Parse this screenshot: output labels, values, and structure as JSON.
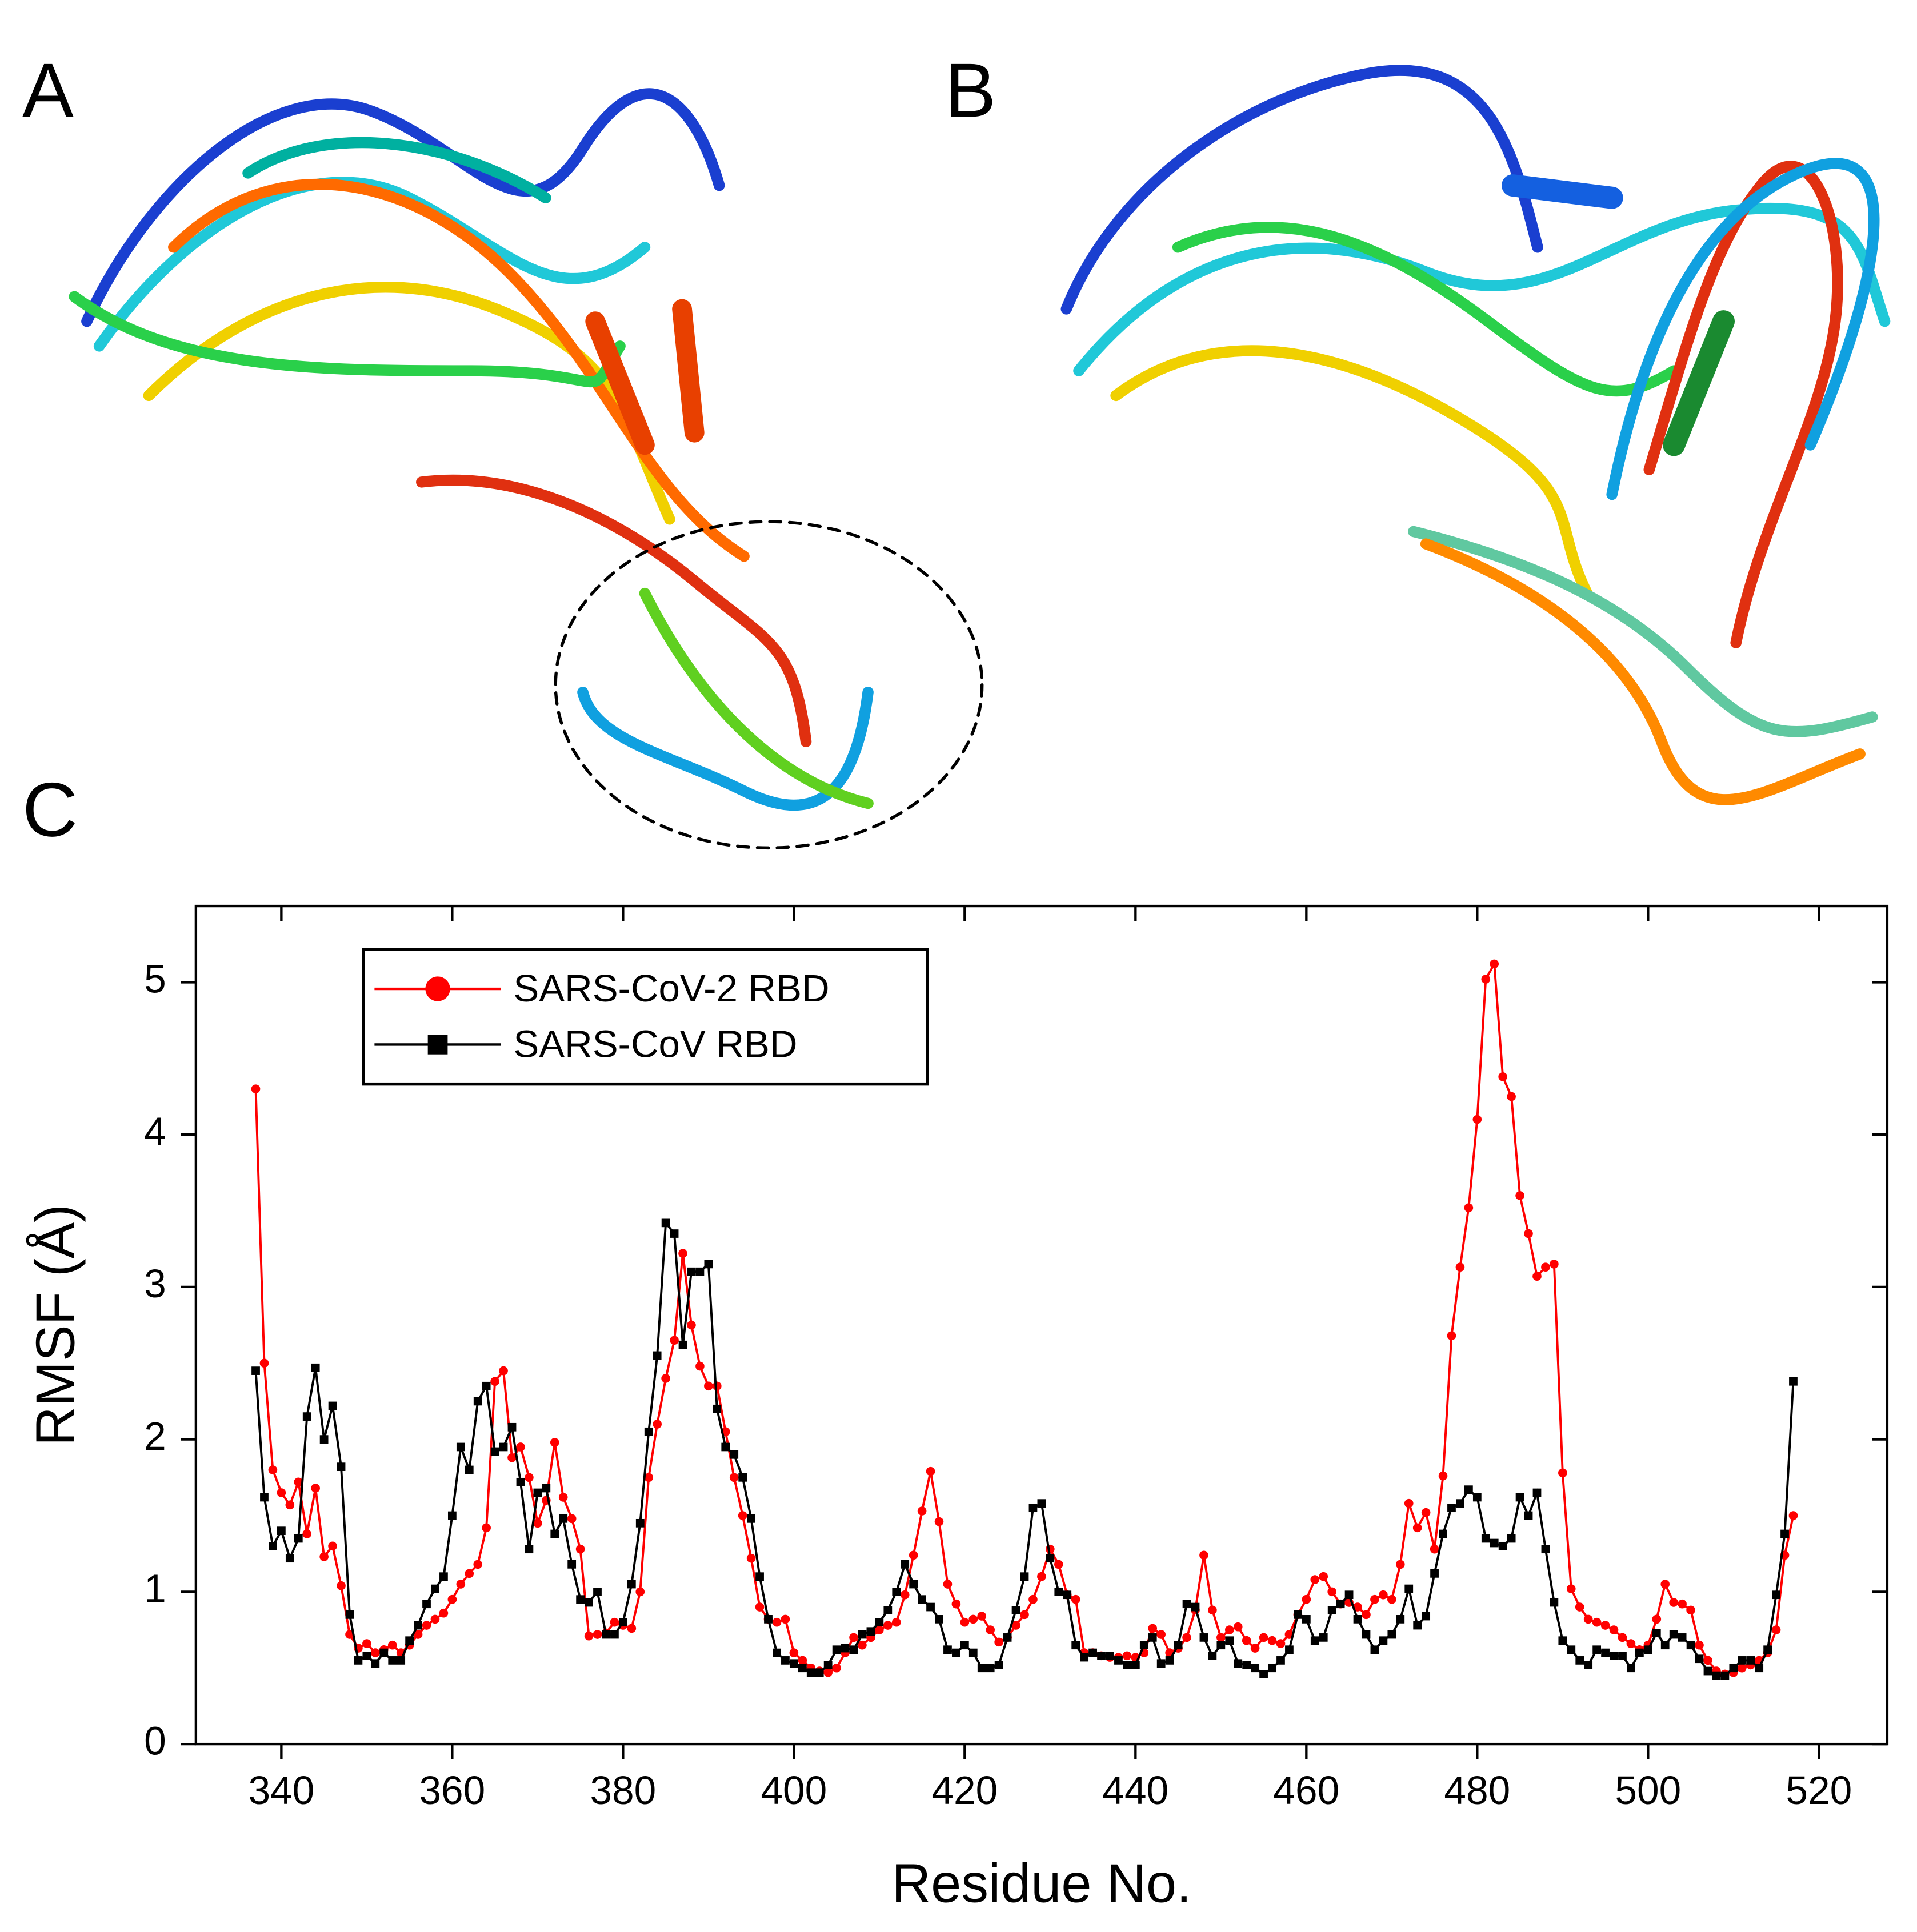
{
  "panels": [
    "A",
    "B",
    "C"
  ],
  "chart_data": {
    "type": "line",
    "xlabel": "Residue No.",
    "ylabel": "RMSF (Å)",
    "xlim": [
      330,
      528
    ],
    "xticks": [
      340,
      360,
      380,
      400,
      420,
      440,
      460,
      480,
      500,
      520
    ],
    "ylim": [
      0,
      5.5
    ],
    "yticks": [
      0,
      1,
      2,
      3,
      4,
      5
    ],
    "legend": "upper left",
    "x": [
      337,
      338,
      339,
      340,
      341,
      342,
      343,
      344,
      345,
      346,
      347,
      348,
      349,
      350,
      351,
      352,
      353,
      354,
      355,
      356,
      357,
      358,
      359,
      360,
      361,
      362,
      363,
      364,
      365,
      366,
      367,
      368,
      369,
      370,
      371,
      372,
      373,
      374,
      375,
      376,
      377,
      378,
      379,
      380,
      381,
      382,
      383,
      384,
      385,
      386,
      387,
      388,
      389,
      390,
      391,
      392,
      393,
      394,
      395,
      396,
      397,
      398,
      399,
      400,
      401,
      402,
      403,
      404,
      405,
      406,
      407,
      408,
      409,
      410,
      411,
      412,
      413,
      414,
      415,
      416,
      417,
      418,
      419,
      420,
      421,
      422,
      423,
      424,
      425,
      426,
      427,
      428,
      429,
      430,
      431,
      432,
      433,
      434,
      435,
      436,
      437,
      438,
      439,
      440,
      441,
      442,
      443,
      444,
      445,
      446,
      447,
      448,
      449,
      450,
      451,
      452,
      453,
      454,
      455,
      456,
      457,
      458,
      459,
      460,
      461,
      462,
      463,
      464,
      465,
      466,
      467,
      468,
      469,
      470,
      471,
      472,
      473,
      474,
      475,
      476,
      477,
      478,
      479,
      480,
      481,
      482,
      483,
      484,
      485,
      486,
      487,
      488,
      489,
      490,
      491,
      492,
      493,
      494,
      495,
      496,
      497,
      498,
      499,
      500,
      501,
      502,
      503,
      504,
      505,
      506,
      507,
      508,
      509,
      510,
      511,
      512,
      513,
      514,
      515,
      516,
      517
    ],
    "series": [
      {
        "name": "SARS-CoV-2 RBD",
        "color": "#ff0000",
        "marker": "circle",
        "values": [
          4.3,
          2.5,
          1.8,
          1.65,
          1.57,
          1.72,
          1.38,
          1.68,
          1.23,
          1.3,
          1.04,
          0.72,
          0.63,
          0.66,
          0.6,
          0.62,
          0.65,
          0.6,
          0.65,
          0.72,
          0.78,
          0.82,
          0.86,
          0.95,
          1.05,
          1.12,
          1.18,
          1.42,
          2.38,
          2.45,
          1.88,
          1.95,
          1.75,
          1.45,
          1.6,
          1.98,
          1.62,
          1.48,
          1.28,
          0.71,
          0.72,
          0.73,
          0.8,
          0.78,
          0.76,
          1.0,
          1.75,
          2.1,
          2.4,
          2.65,
          3.22,
          2.75,
          2.48,
          2.35,
          2.35,
          2.05,
          1.75,
          1.5,
          1.22,
          0.9,
          0.82,
          0.8,
          0.82,
          0.6,
          0.55,
          0.5,
          0.48,
          0.47,
          0.5,
          0.6,
          0.7,
          0.65,
          0.7,
          0.75,
          0.78,
          0.8,
          0.98,
          1.24,
          1.53,
          1.79,
          1.46,
          1.05,
          0.92,
          0.8,
          0.82,
          0.84,
          0.75,
          0.67,
          0.7,
          0.78,
          0.85,
          0.95,
          1.1,
          1.28,
          1.18,
          0.98,
          0.95,
          0.6,
          0.6,
          0.58,
          0.57,
          0.57,
          0.58,
          0.57,
          0.6,
          0.76,
          0.72,
          0.6,
          0.63,
          0.7,
          0.88,
          1.24,
          0.88,
          0.7,
          0.75,
          0.77,
          0.68,
          0.63,
          0.7,
          0.68,
          0.66,
          0.72,
          0.85,
          0.95,
          1.08,
          1.1,
          1.0,
          0.92,
          0.93,
          0.9,
          0.85,
          0.95,
          0.98,
          0.95,
          1.18,
          1.58,
          1.42,
          1.52,
          1.28,
          1.76,
          2.68,
          3.13,
          3.52,
          4.1,
          5.02,
          5.12,
          4.38,
          4.25,
          3.6,
          3.35,
          3.07,
          3.13,
          3.15,
          1.78,
          1.02,
          0.9,
          0.82,
          0.8,
          0.78,
          0.75,
          0.7,
          0.66,
          0.62,
          0.65,
          0.82,
          1.05,
          0.93,
          0.92,
          0.88,
          0.65,
          0.55,
          0.48,
          0.46,
          0.47,
          0.5,
          0.52,
          0.55,
          0.6,
          0.75,
          1.24,
          1.5
        ]
      },
      {
        "name": "SARS-CoV RBD",
        "color": "#000000",
        "marker": "square",
        "values": [
          2.45,
          1.62,
          1.3,
          1.4,
          1.22,
          1.35,
          2.15,
          2.47,
          2.0,
          2.22,
          1.82,
          0.85,
          0.55,
          0.58,
          0.53,
          0.6,
          0.55,
          0.55,
          0.68,
          0.78,
          0.92,
          1.02,
          1.1,
          1.5,
          1.95,
          1.8,
          2.25,
          2.35,
          1.92,
          1.95,
          2.08,
          1.72,
          1.28,
          1.65,
          1.68,
          1.38,
          1.48,
          1.18,
          0.95,
          0.93,
          1.0,
          0.72,
          0.72,
          0.8,
          1.05,
          1.45,
          2.05,
          2.55,
          3.42,
          3.35,
          2.62,
          3.1,
          3.1,
          3.15,
          2.2,
          1.95,
          1.9,
          1.75,
          1.48,
          1.1,
          0.82,
          0.6,
          0.55,
          0.53,
          0.5,
          0.47,
          0.47,
          0.52,
          0.62,
          0.63,
          0.62,
          0.72,
          0.74,
          0.8,
          0.88,
          1.0,
          1.18,
          1.05,
          0.95,
          0.9,
          0.82,
          0.62,
          0.6,
          0.65,
          0.6,
          0.5,
          0.5,
          0.52,
          0.7,
          0.88,
          1.1,
          1.55,
          1.58,
          1.22,
          1.0,
          0.98,
          0.65,
          0.57,
          0.6,
          0.58,
          0.58,
          0.55,
          0.52,
          0.52,
          0.65,
          0.7,
          0.53,
          0.55,
          0.65,
          0.92,
          0.9,
          0.7,
          0.58,
          0.65,
          0.68,
          0.53,
          0.52,
          0.5,
          0.46,
          0.5,
          0.55,
          0.62,
          0.85,
          0.82,
          0.68,
          0.7,
          0.88,
          0.92,
          0.98,
          0.82,
          0.72,
          0.62,
          0.68,
          0.72,
          0.82,
          1.02,
          0.78,
          0.84,
          1.12,
          1.38,
          1.55,
          1.58,
          1.67,
          1.62,
          1.35,
          1.32,
          1.3,
          1.35,
          1.62,
          1.5,
          1.65,
          1.28,
          0.93,
          0.68,
          0.62,
          0.55,
          0.52,
          0.62,
          0.6,
          0.58,
          0.58,
          0.5,
          0.6,
          0.62,
          0.73,
          0.65,
          0.72,
          0.7,
          0.65,
          0.56,
          0.48,
          0.45,
          0.45,
          0.5,
          0.55,
          0.55,
          0.5,
          0.62,
          0.98,
          1.38,
          2.38
        ]
      }
    ]
  }
}
